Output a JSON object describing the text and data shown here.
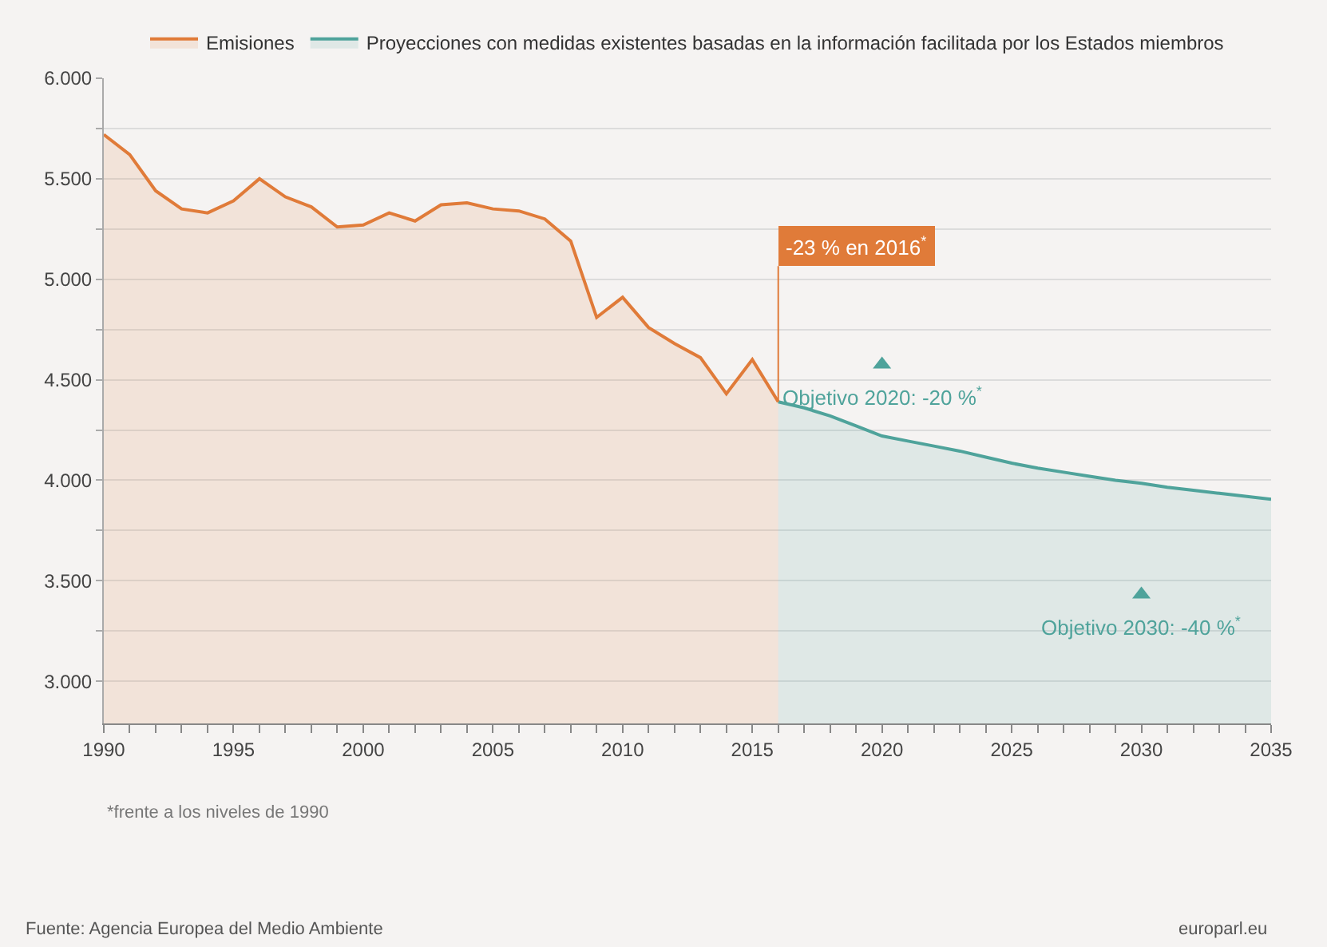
{
  "chart_data": {
    "type": "area",
    "series": [
      {
        "name": "Emisiones",
        "color": "#e07b39",
        "x": [
          1990,
          1991,
          1992,
          1993,
          1994,
          1995,
          1996,
          1997,
          1998,
          1999,
          2000,
          2001,
          2002,
          2003,
          2004,
          2005,
          2006,
          2007,
          2008,
          2009,
          2010,
          2011,
          2012,
          2013,
          2014,
          2015,
          2016
        ],
        "values": [
          5720,
          5620,
          5440,
          5350,
          5330,
          5390,
          5500,
          5410,
          5360,
          5260,
          5270,
          5330,
          5290,
          5370,
          5380,
          5350,
          5340,
          5300,
          5190,
          4810,
          4910,
          4760,
          4680,
          4610,
          4430,
          4600,
          4390
        ]
      },
      {
        "name": "Proyecciones con medidas existentes basadas en la información facilitada por los Estados miembros",
        "color": "#4fa39b",
        "x": [
          2016,
          2017,
          2018,
          2019,
          2020,
          2021,
          2022,
          2023,
          2024,
          2025,
          2026,
          2027,
          2028,
          2029,
          2030,
          2031,
          2032,
          2033,
          2034,
          2035
        ],
        "values": [
          4390,
          4360,
          4320,
          4270,
          4220,
          4195,
          4170,
          4145,
          4115,
          4085,
          4060,
          4040,
          4020,
          4000,
          3985,
          3965,
          3950,
          3935,
          3920,
          3905
        ]
      },
      {
        "type": "scatter",
        "marker": "triangle",
        "color": "#4fa39b",
        "x": [
          2020,
          2030
        ],
        "values": [
          4576,
          3432
        ]
      }
    ],
    "annotations": [
      {
        "text": "-23 % en 2016$^{*}$",
        "x": 2016,
        "y": 4390
      },
      {
        "text": "Objetivo 2020: -20 %$^{*}$",
        "x": 2020,
        "y": 4576
      },
      {
        "text": "Objetivo 2030: -40 %$^{*}$",
        "x": 2030,
        "y": 3432
      },
      "*frente a los niveles de 1990",
      "Fuente: Agencia Europea del Medio Ambiente",
      "europarl.eu"
    ],
    "xlim": [
      1990,
      2035
    ],
    "xticks": [
      1990,
      {
        "value": 1991,
        "label": null
      },
      {
        "value": 1992,
        "label": null
      },
      {
        "value": 1993,
        "label": null
      },
      {
        "value": 1994,
        "label": null
      },
      1995,
      {
        "value": 1996,
        "label": null
      },
      {
        "value": 1997,
        "label": null
      },
      {
        "value": 1998,
        "label": null
      },
      {
        "value": 1999,
        "label": null
      },
      2000,
      {
        "value": 2001,
        "label": null
      },
      {
        "value": 2002,
        "label": null
      },
      {
        "value": 2003,
        "label": null
      },
      {
        "value": 2004,
        "label": null
      },
      2005,
      {
        "value": 2006,
        "label": null
      },
      {
        "value": 2007,
        "label": null
      },
      {
        "value": 2008,
        "label": null
      },
      {
        "value": 2009,
        "label": null
      },
      2010,
      {
        "value": 2011,
        "label": null
      },
      {
        "value": 2012,
        "label": null
      },
      {
        "value": 2013,
        "label": null
      },
      {
        "value": 2014,
        "label": null
      },
      2015,
      {
        "value": 2016,
        "label": null
      },
      {
        "value": 2017,
        "label": null
      },
      {
        "value": 2018,
        "label": null
      },
      {
        "value": 2019,
        "label": null
      },
      2020,
      {
        "value": 2021,
        "label": null
      },
      {
        "value": 2022,
        "label": null
      },
      {
        "value": 2023,
        "label": null
      },
      {
        "value": 2024,
        "label": null
      },
      2025,
      {
        "value": 2026,
        "label": null
      },
      {
        "value": 2027,
        "label": null
      },
      {
        "value": 2028,
        "label": null
      },
      {
        "value": 2029,
        "label": null
      },
      2030,
      {
        "value": 2031,
        "label": null
      },
      {
        "value": 2032,
        "label": null
      },
      {
        "value": 2033,
        "label": null
      },
      {
        "value": 2034,
        "label": null
      },
      2035
    ],
    "ylim": [
      2790,
      6000
    ],
    "yticks": [
      {
        "value": 3000,
        "label": "3.000"
      },
      {
        "value": 3250,
        "label": null
      },
      {
        "value": 3500,
        "label": "3.500"
      },
      {
        "value": 3750,
        "label": null
      },
      {
        "value": 4000,
        "label": "4.000"
      },
      {
        "value": 4250,
        "label": null
      },
      {
        "value": 4500,
        "label": "4.500"
      },
      {
        "value": 4750,
        "label": null
      },
      {
        "value": 5000,
        "label": "5.000"
      },
      {
        "value": 5250,
        "label": null
      },
      {
        "value": 5500,
        "label": "5.500"
      },
      {
        "value": 5750,
        "label": null
      },
      {
        "value": 6000,
        "label": "6.000"
      }
    ],
    "grid": "y",
    "legend": "top",
    "marker": "none",
    "line_style": "solid"
  }
}
